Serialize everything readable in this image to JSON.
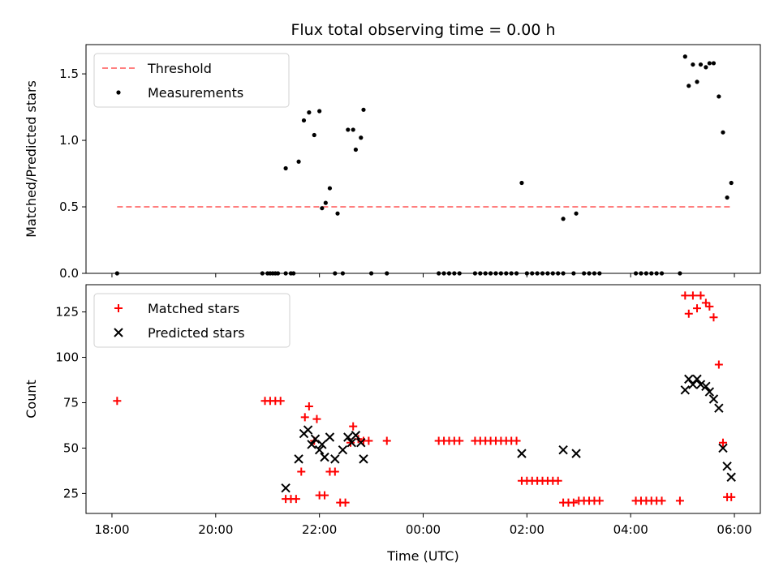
{
  "chart_data": [
    {
      "type": "scatter",
      "title": "Flux total observing time = 0.00 h",
      "xlabel": "",
      "ylabel": "Matched/Predicted stars",
      "x_unit": "hours since 18:00 UTC",
      "xlim": [
        -0.5,
        12.5
      ],
      "ylim": [
        0,
        1.72
      ],
      "yticks": [
        0.0,
        0.5,
        1.0,
        1.5
      ],
      "ytick_labels": [
        "0.0",
        "0.5",
        "1.0",
        "1.5"
      ],
      "xticks": [
        0,
        2,
        4,
        6,
        8,
        10,
        12
      ],
      "grid": false,
      "legend": "top-left",
      "series": [
        {
          "name": "Threshold",
          "kind": "line",
          "color": "#ff7f7f",
          "dash": true,
          "x": [
            0.1,
            11.95
          ],
          "y": [
            0.5,
            0.5
          ]
        },
        {
          "name": "Measurements",
          "kind": "point",
          "color": "#000000",
          "points": [
            [
              0.1,
              0.0
            ],
            [
              2.9,
              0.0
            ],
            [
              3.0,
              0.0
            ],
            [
              3.05,
              0.0
            ],
            [
              3.1,
              0.0
            ],
            [
              3.15,
              0.0
            ],
            [
              3.2,
              0.0
            ],
            [
              3.35,
              0.79
            ],
            [
              3.35,
              0.0
            ],
            [
              3.45,
              0.0
            ],
            [
              3.5,
              0.0
            ],
            [
              3.6,
              0.84
            ],
            [
              3.7,
              1.15
            ],
            [
              3.8,
              1.21
            ],
            [
              3.9,
              1.04
            ],
            [
              4.0,
              1.22
            ],
            [
              4.05,
              0.49
            ],
            [
              4.12,
              0.53
            ],
            [
              4.2,
              0.64
            ],
            [
              4.3,
              0.0
            ],
            [
              4.35,
              0.45
            ],
            [
              4.45,
              0.0
            ],
            [
              4.55,
              1.08
            ],
            [
              4.65,
              1.08
            ],
            [
              4.7,
              0.93
            ],
            [
              4.8,
              1.02
            ],
            [
              4.85,
              1.23
            ],
            [
              5.0,
              0.0
            ],
            [
              5.3,
              0.0
            ],
            [
              6.3,
              0.0
            ],
            [
              6.4,
              0.0
            ],
            [
              6.5,
              0.0
            ],
            [
              6.6,
              0.0
            ],
            [
              6.7,
              0.0
            ],
            [
              7.0,
              0.0
            ],
            [
              7.1,
              0.0
            ],
            [
              7.2,
              0.0
            ],
            [
              7.3,
              0.0
            ],
            [
              7.4,
              0.0
            ],
            [
              7.5,
              0.0
            ],
            [
              7.6,
              0.0
            ],
            [
              7.7,
              0.0
            ],
            [
              7.8,
              0.0
            ],
            [
              7.9,
              0.68
            ],
            [
              8.0,
              0.0
            ],
            [
              8.1,
              0.0
            ],
            [
              8.2,
              0.0
            ],
            [
              8.3,
              0.0
            ],
            [
              8.4,
              0.0
            ],
            [
              8.5,
              0.0
            ],
            [
              8.6,
              0.0
            ],
            [
              8.7,
              0.0
            ],
            [
              8.7,
              0.41
            ],
            [
              8.9,
              0.0
            ],
            [
              8.95,
              0.45
            ],
            [
              9.1,
              0.0
            ],
            [
              9.2,
              0.0
            ],
            [
              9.3,
              0.0
            ],
            [
              9.4,
              0.0
            ],
            [
              10.1,
              0.0
            ],
            [
              10.2,
              0.0
            ],
            [
              10.3,
              0.0
            ],
            [
              10.4,
              0.0
            ],
            [
              10.5,
              0.0
            ],
            [
              10.6,
              0.0
            ],
            [
              10.95,
              0.0
            ],
            [
              11.05,
              1.63
            ],
            [
              11.12,
              1.41
            ],
            [
              11.2,
              1.57
            ],
            [
              11.28,
              1.44
            ],
            [
              11.35,
              1.57
            ],
            [
              11.45,
              1.55
            ],
            [
              11.52,
              1.58
            ],
            [
              11.6,
              1.58
            ],
            [
              11.7,
              1.33
            ],
            [
              11.78,
              1.06
            ],
            [
              11.86,
              0.57
            ],
            [
              11.94,
              0.68
            ]
          ]
        }
      ]
    },
    {
      "type": "scatter",
      "title": "",
      "xlabel": "Time (UTC)",
      "ylabel": "Count",
      "x_unit": "hours since 18:00 UTC",
      "xlim": [
        -0.5,
        12.5
      ],
      "ylim": [
        14,
        140
      ],
      "yticks": [
        25,
        50,
        75,
        100,
        125
      ],
      "ytick_labels": [
        "25",
        "50",
        "75",
        "100",
        "125"
      ],
      "xticks": [
        0,
        2,
        4,
        6,
        8,
        10,
        12
      ],
      "xtick_labels": [
        "18:00",
        "20:00",
        "22:00",
        "00:00",
        "02:00",
        "04:00",
        "06:00"
      ],
      "grid": false,
      "legend": "top-left",
      "series": [
        {
          "name": "Matched stars",
          "marker": "plus",
          "color": "#ff0000",
          "points": [
            [
              0.1,
              76
            ],
            [
              2.95,
              76
            ],
            [
              3.05,
              76
            ],
            [
              3.15,
              76
            ],
            [
              3.25,
              76
            ],
            [
              3.35,
              22
            ],
            [
              3.45,
              22
            ],
            [
              3.55,
              22
            ],
            [
              3.65,
              37
            ],
            [
              3.72,
              67
            ],
            [
              3.8,
              73
            ],
            [
              3.9,
              54
            ],
            [
              3.95,
              66
            ],
            [
              4.0,
              24
            ],
            [
              4.1,
              24
            ],
            [
              4.2,
              37
            ],
            [
              4.3,
              37
            ],
            [
              4.4,
              20
            ],
            [
              4.5,
              20
            ],
            [
              4.6,
              53
            ],
            [
              4.65,
              62
            ],
            [
              4.75,
              55
            ],
            [
              4.85,
              54
            ],
            [
              4.95,
              54
            ],
            [
              5.3,
              54
            ],
            [
              6.3,
              54
            ],
            [
              6.4,
              54
            ],
            [
              6.5,
              54
            ],
            [
              6.6,
              54
            ],
            [
              6.7,
              54
            ],
            [
              7.0,
              54
            ],
            [
              7.1,
              54
            ],
            [
              7.2,
              54
            ],
            [
              7.3,
              54
            ],
            [
              7.4,
              54
            ],
            [
              7.5,
              54
            ],
            [
              7.6,
              54
            ],
            [
              7.7,
              54
            ],
            [
              7.8,
              54
            ],
            [
              7.9,
              32
            ],
            [
              8.0,
              32
            ],
            [
              8.1,
              32
            ],
            [
              8.2,
              32
            ],
            [
              8.3,
              32
            ],
            [
              8.4,
              32
            ],
            [
              8.5,
              32
            ],
            [
              8.6,
              32
            ],
            [
              8.7,
              20
            ],
            [
              8.8,
              20
            ],
            [
              8.9,
              20
            ],
            [
              9.0,
              21
            ],
            [
              9.1,
              21
            ],
            [
              9.2,
              21
            ],
            [
              9.3,
              21
            ],
            [
              9.4,
              21
            ],
            [
              10.1,
              21
            ],
            [
              10.2,
              21
            ],
            [
              10.3,
              21
            ],
            [
              10.4,
              21
            ],
            [
              10.5,
              21
            ],
            [
              10.6,
              21
            ],
            [
              10.95,
              21
            ],
            [
              11.05,
              134
            ],
            [
              11.12,
              124
            ],
            [
              11.2,
              134
            ],
            [
              11.28,
              127
            ],
            [
              11.35,
              134
            ],
            [
              11.45,
              130
            ],
            [
              11.52,
              128
            ],
            [
              11.6,
              122
            ],
            [
              11.7,
              96
            ],
            [
              11.78,
              53
            ],
            [
              11.86,
              23
            ],
            [
              11.94,
              23
            ]
          ]
        },
        {
          "name": "Predicted stars",
          "marker": "x",
          "color": "#000000",
          "points": [
            [
              3.35,
              28
            ],
            [
              3.6,
              44
            ],
            [
              3.7,
              58
            ],
            [
              3.78,
              60
            ],
            [
              3.85,
              52
            ],
            [
              3.92,
              55
            ],
            [
              4.0,
              49
            ],
            [
              4.05,
              52
            ],
            [
              4.1,
              45
            ],
            [
              4.2,
              56
            ],
            [
              4.3,
              44
            ],
            [
              4.45,
              49
            ],
            [
              4.55,
              56
            ],
            [
              4.62,
              53
            ],
            [
              4.7,
              57
            ],
            [
              4.8,
              53
            ],
            [
              4.85,
              44
            ],
            [
              7.9,
              47
            ],
            [
              8.7,
              49
            ],
            [
              8.95,
              47
            ],
            [
              11.05,
              82
            ],
            [
              11.12,
              88
            ],
            [
              11.2,
              85
            ],
            [
              11.28,
              88
            ],
            [
              11.35,
              85
            ],
            [
              11.45,
              84
            ],
            [
              11.52,
              81
            ],
            [
              11.6,
              77
            ],
            [
              11.7,
              72
            ],
            [
              11.78,
              50
            ],
            [
              11.86,
              40
            ],
            [
              11.94,
              34
            ]
          ]
        }
      ]
    }
  ]
}
